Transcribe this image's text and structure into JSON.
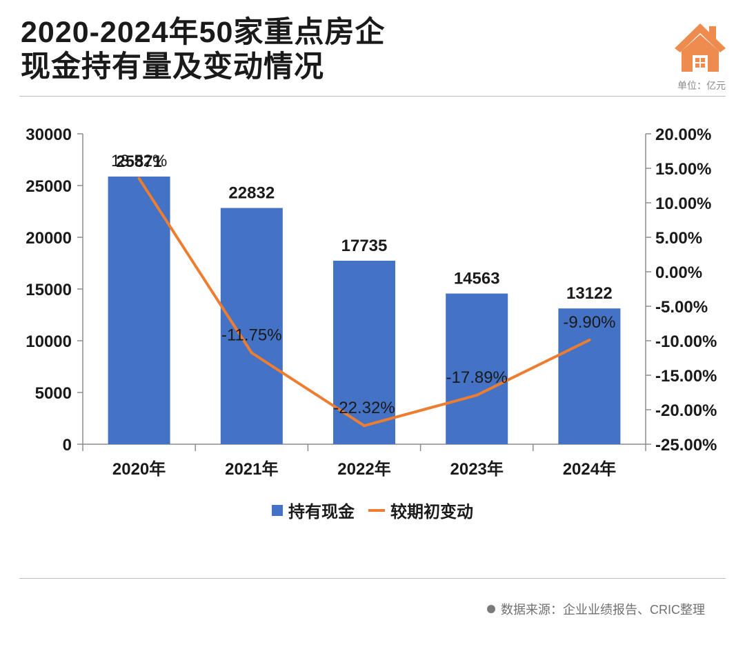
{
  "header": {
    "title_line1": "2020-2024年50家重点房企",
    "title_line2": "现金持有量及变动情况",
    "unit": "单位：亿元",
    "icon": "house-icon"
  },
  "footer": {
    "source": "数据来源：企业业绩报告、CRIC整理"
  },
  "colors": {
    "bar": "#4472C4",
    "line": "#ED7D31",
    "icon": "#EE8B4E"
  },
  "chart_data": {
    "type": "bar",
    "categories": [
      "2020年",
      "2021年",
      "2022年",
      "2023年",
      "2024年"
    ],
    "series": [
      {
        "name": "持有现金",
        "type": "bar",
        "axis": "left",
        "values": [
          25871,
          22832,
          17735,
          14563,
          13122
        ],
        "labels": [
          "25871",
          "22832",
          "17735",
          "14563",
          "13122"
        ]
      },
      {
        "name": "较期初变动",
        "type": "line",
        "axis": "right",
        "values": [
          13.52,
          -11.75,
          -22.32,
          -17.89,
          -9.9
        ],
        "labels": [
          "13.52%",
          "-11.75%",
          "-22.32%",
          "-17.89%",
          "-9.90%"
        ]
      }
    ],
    "y_left": {
      "range": [
        0,
        30000
      ],
      "ticks": [
        0,
        5000,
        10000,
        15000,
        20000,
        25000,
        30000
      ],
      "tick_labels": [
        "0",
        "5000",
        "10000",
        "15000",
        "20000",
        "25000",
        "30000"
      ]
    },
    "y_right": {
      "range": [
        -25,
        20
      ],
      "ticks": [
        -25,
        -20,
        -15,
        -10,
        -5,
        0,
        5,
        10,
        15,
        20
      ],
      "tick_labels": [
        "-25.00%",
        "-20.00%",
        "-15.00%",
        "-10.00%",
        "-5.00%",
        "0.00%",
        "5.00%",
        "10.00%",
        "15.00%",
        "20.00%"
      ]
    },
    "legend_position": "bottom",
    "grid": false
  }
}
